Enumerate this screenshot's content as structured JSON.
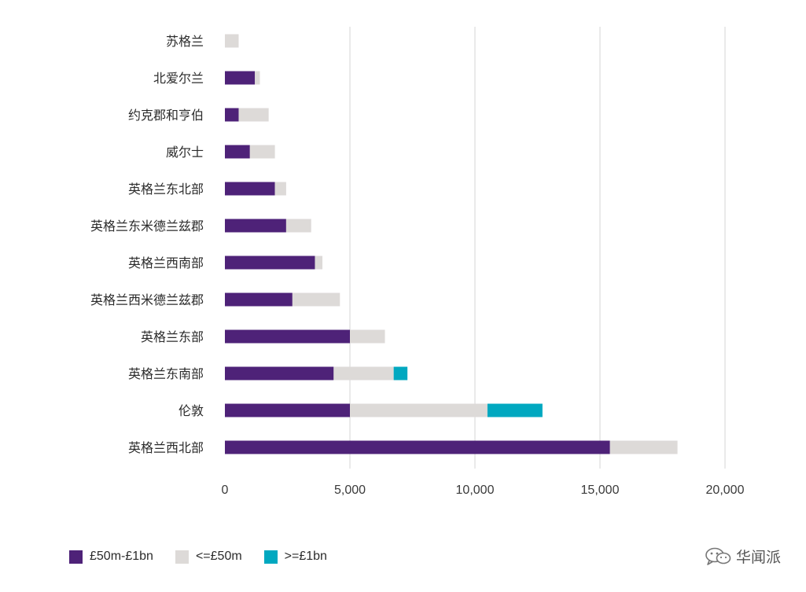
{
  "chart_data": {
    "type": "bar",
    "orientation": "horizontal",
    "stacked": true,
    "categories": [
      "苏格兰",
      "北爱尔兰",
      "约克郡和亨伯",
      "威尔士",
      "英格兰东北部",
      "英格兰东米德兰兹郡",
      "英格兰西南部",
      "英格兰西米德兰兹郡",
      "英格兰东部",
      "英格兰东南部",
      "伦敦",
      "英格兰西北部"
    ],
    "series": [
      {
        "name": "£50m-£1bn",
        "color": "#4e2278",
        "values": [
          0,
          1200,
          550,
          1000,
          2000,
          2450,
          3600,
          2700,
          5000,
          4350,
          5000,
          15400
        ]
      },
      {
        "name": "<=£50m",
        "color": "#dddad8",
        "values": [
          550,
          200,
          1200,
          1000,
          450,
          1000,
          300,
          1900,
          1400,
          2400,
          5500,
          2700
        ]
      },
      {
        "name": ">=£1bn",
        "color": "#00a8c0",
        "values": [
          0,
          0,
          0,
          0,
          0,
          0,
          0,
          0,
          0,
          550,
          2200,
          0
        ]
      }
    ],
    "xlim": [
      0,
      20000
    ],
    "xticks": [
      0,
      5000,
      10000,
      15000,
      20000
    ],
    "xtick_labels": [
      "0",
      "5,000",
      "10,000",
      "15,000",
      "20,000"
    ],
    "title": "",
    "xlabel": "",
    "ylabel": "",
    "grid": true,
    "legend_position": "bottom-left"
  },
  "watermark": {
    "text": "华闻派",
    "icon": "wechat-icon"
  }
}
